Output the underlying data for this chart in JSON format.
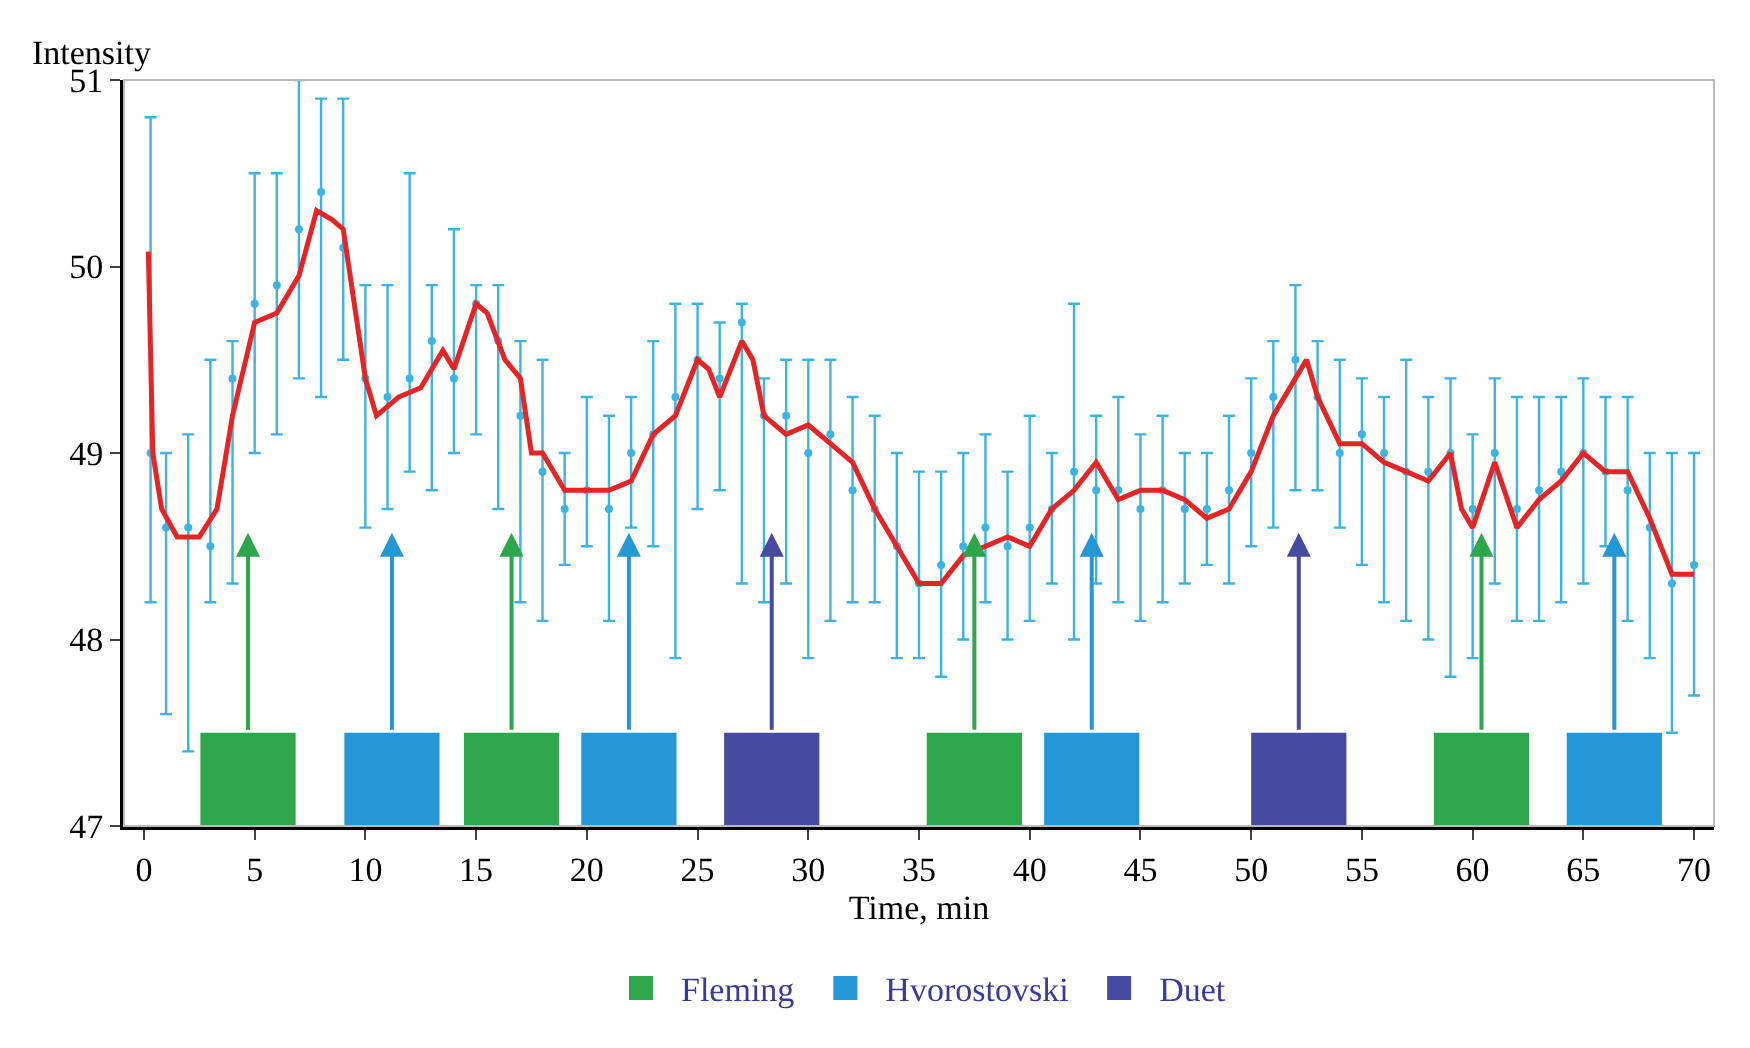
{
  "chart_data": {
    "type": "scatter",
    "xlabel": "Time, min",
    "ylabel": "Intensity",
    "xlim": [
      -0.9,
      70.9
    ],
    "xticks": [
      0,
      5,
      10,
      15,
      20,
      25,
      30,
      35,
      40,
      45,
      50,
      55,
      60,
      65,
      70
    ],
    "ylim": [
      47,
      51
    ],
    "yticks": [
      47,
      48,
      49,
      50,
      51
    ],
    "legend": "bottom",
    "series": [
      {
        "color": "#3bb4e3",
        "marker": "circle",
        "x": [
          0.3,
          1,
          2,
          3,
          4,
          5,
          6,
          7,
          8,
          9,
          10,
          11,
          12,
          13,
          14,
          15,
          16,
          17,
          18,
          19,
          20,
          21,
          22,
          23,
          24,
          25,
          26,
          27,
          28,
          29,
          30,
          31,
          32,
          33,
          34,
          35,
          36,
          37,
          38,
          39,
          40,
          41,
          42,
          43,
          44,
          45,
          46,
          47,
          48,
          49,
          50,
          51,
          52,
          53,
          54,
          55,
          56,
          57,
          58,
          59,
          60,
          61,
          62,
          63,
          64,
          65,
          66,
          67,
          68,
          69,
          70
        ],
        "values": [
          49.0,
          48.6,
          48.6,
          48.5,
          49.4,
          49.8,
          49.9,
          50.2,
          50.4,
          50.1,
          49.4,
          49.3,
          49.4,
          49.6,
          49.4,
          49.8,
          49.6,
          49.2,
          48.9,
          48.7,
          48.8,
          48.7,
          49.0,
          49.1,
          49.3,
          49.5,
          49.4,
          49.7,
          49.2,
          49.2,
          49.0,
          49.1,
          48.8,
          48.7,
          48.5,
          48.3,
          48.4,
          48.5,
          48.6,
          48.5,
          48.6,
          48.7,
          48.9,
          48.8,
          48.8,
          48.7,
          48.8,
          48.7,
          48.7,
          48.8,
          49.0,
          49.3,
          49.5,
          49.3,
          49.0,
          49.1,
          49.0,
          48.9,
          48.9,
          49.0,
          48.7,
          49.0,
          48.7,
          48.8,
          48.9,
          49.0,
          48.9,
          48.8,
          48.6,
          48.3,
          48.4
        ],
        "errors": [
          [
            48.2,
            50.8
          ],
          [
            47.6,
            49.0
          ],
          [
            47.4,
            49.1
          ],
          [
            48.2,
            49.5
          ],
          [
            48.3,
            49.6
          ],
          [
            49.0,
            50.5
          ],
          [
            49.1,
            50.5
          ],
          [
            49.4,
            51.0
          ],
          [
            49.3,
            50.9
          ],
          [
            49.5,
            50.9
          ],
          [
            48.6,
            49.9
          ],
          [
            48.7,
            49.9
          ],
          [
            48.9,
            50.5
          ],
          [
            48.8,
            49.9
          ],
          [
            49.0,
            50.2
          ],
          [
            49.1,
            49.9
          ],
          [
            48.7,
            49.9
          ],
          [
            48.2,
            49.6
          ],
          [
            48.1,
            49.5
          ],
          [
            48.4,
            49.0
          ],
          [
            48.5,
            49.3
          ],
          [
            48.1,
            49.2
          ],
          [
            48.6,
            49.3
          ],
          [
            48.5,
            49.6
          ],
          [
            47.9,
            49.8
          ],
          [
            48.7,
            49.8
          ],
          [
            48.8,
            49.7
          ],
          [
            48.3,
            49.8
          ],
          [
            48.2,
            49.4
          ],
          [
            48.3,
            49.5
          ],
          [
            47.9,
            49.5
          ],
          [
            48.1,
            49.5
          ],
          [
            48.2,
            49.3
          ],
          [
            48.2,
            49.2
          ],
          [
            47.9,
            49.0
          ],
          [
            47.9,
            48.9
          ],
          [
            47.8,
            48.9
          ],
          [
            48.0,
            49.0
          ],
          [
            48.2,
            49.1
          ],
          [
            48.0,
            48.9
          ],
          [
            48.1,
            49.2
          ],
          [
            48.3,
            49.0
          ],
          [
            48.0,
            49.8
          ],
          [
            48.3,
            49.2
          ],
          [
            48.2,
            49.3
          ],
          [
            48.1,
            49.1
          ],
          [
            48.2,
            49.2
          ],
          [
            48.3,
            49.0
          ],
          [
            48.4,
            49.0
          ],
          [
            48.3,
            49.2
          ],
          [
            48.5,
            49.4
          ],
          [
            48.6,
            49.6
          ],
          [
            48.8,
            49.9
          ],
          [
            48.8,
            49.6
          ],
          [
            48.6,
            49.5
          ],
          [
            48.4,
            49.4
          ],
          [
            48.2,
            49.3
          ],
          [
            48.1,
            49.5
          ],
          [
            48.0,
            49.3
          ],
          [
            47.8,
            49.4
          ],
          [
            47.9,
            49.1
          ],
          [
            48.3,
            49.4
          ],
          [
            48.1,
            49.3
          ],
          [
            48.1,
            49.3
          ],
          [
            48.2,
            49.3
          ],
          [
            48.3,
            49.4
          ],
          [
            48.5,
            49.3
          ],
          [
            48.1,
            49.3
          ],
          [
            47.9,
            49.0
          ],
          [
            47.5,
            49.0
          ],
          [
            47.7,
            49.0
          ]
        ]
      },
      {
        "type": "line",
        "color": "#e52425",
        "marker": "none",
        "line_style": "solid",
        "x": [
          0.2,
          0.4,
          0.8,
          1.5,
          2.5,
          3.3,
          4,
          5,
          6,
          7,
          7.8,
          8.5,
          9,
          9.5,
          10,
          10.5,
          11.5,
          12.5,
          13.5,
          14,
          15,
          15.5,
          16.3,
          17,
          17.5,
          18,
          19,
          20,
          21,
          22,
          23,
          24,
          25,
          25.5,
          26,
          27,
          27.5,
          28,
          29,
          30,
          31,
          32,
          33,
          34,
          35,
          36,
          37,
          38,
          39,
          40,
          41,
          42,
          43,
          44,
          45,
          46,
          47,
          48,
          49,
          50,
          50.5,
          51,
          52,
          52.5,
          53,
          54,
          55,
          56,
          57,
          58,
          59,
          59.5,
          60,
          61,
          62,
          63,
          64,
          65,
          66,
          67,
          68,
          69,
          70
        ],
        "values": [
          50.08,
          49.0,
          48.7,
          48.55,
          48.55,
          48.7,
          49.2,
          49.7,
          49.75,
          49.95,
          50.3,
          50.25,
          50.2,
          49.8,
          49.4,
          49.2,
          49.3,
          49.35,
          49.55,
          49.45,
          49.8,
          49.75,
          49.5,
          49.4,
          49.0,
          49.0,
          48.8,
          48.8,
          48.8,
          48.85,
          49.1,
          49.2,
          49.5,
          49.45,
          49.3,
          49.6,
          49.5,
          49.2,
          49.1,
          49.15,
          49.05,
          48.95,
          48.7,
          48.5,
          48.3,
          48.3,
          48.45,
          48.5,
          48.55,
          48.5,
          48.7,
          48.8,
          48.95,
          48.75,
          48.8,
          48.8,
          48.75,
          48.65,
          48.7,
          48.9,
          49.05,
          49.2,
          49.4,
          49.5,
          49.3,
          49.05,
          49.05,
          48.95,
          48.9,
          48.85,
          49.0,
          48.7,
          48.6,
          48.95,
          48.6,
          48.75,
          48.85,
          49.0,
          48.9,
          48.9,
          48.65,
          48.35,
          48.35
        ]
      },
      {
        "type": "bar",
        "name": "Fleming",
        "color": "#2ea64b",
        "x": [
          4.7,
          16.6,
          37.5,
          60.4
        ],
        "values": [
          0.5,
          0.5,
          0.5,
          0.5
        ],
        "base": [
          47,
          47,
          47,
          47
        ]
      },
      {
        "type": "bar",
        "name": "Hvorostovski",
        "color": "#2597d6",
        "x": [
          11.2,
          21.9,
          42.8,
          66.4
        ],
        "values": [
          0.5,
          0.5,
          0.5,
          0.5
        ],
        "base": [
          47,
          47,
          47,
          47
        ]
      },
      {
        "type": "bar",
        "name": "Duet",
        "color": "#464b9f",
        "x": [
          28.35,
          52.15
        ],
        "values": [
          0.5,
          0.5
        ],
        "base": [
          47,
          47
        ]
      }
    ]
  }
}
